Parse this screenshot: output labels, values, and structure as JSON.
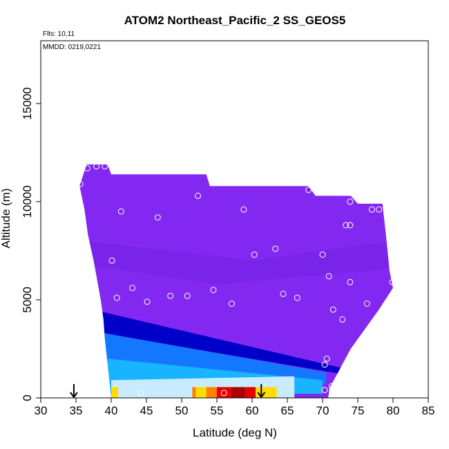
{
  "chart_data": {
    "type": "heatmap",
    "title": "ATOM2 Northeast_Pacific_2 SS_GEOS5",
    "flights_label": "Flts: 10,11",
    "dates_label": "MMDD: 0219,0221",
    "xlabel": "Latitude (deg N)",
    "ylabel": "Altitude (m)",
    "xlim": [
      30,
      85
    ],
    "ylim": [
      0,
      18200
    ],
    "x_ticks": [
      30,
      35,
      40,
      45,
      50,
      55,
      60,
      65,
      70,
      75,
      80,
      85
    ],
    "y_ticks": [
      0,
      5000,
      10000,
      15000
    ],
    "grid": false,
    "legend": "none",
    "colors": {
      "background": "#8228f0",
      "deep_blue": "#0000c8",
      "mid_blue": "#1478ff",
      "cyan": "#19b4ff",
      "light_blue": "#c8ebff",
      "yellow": "#ffdc00",
      "orange": "#ff8200",
      "red": "#e60000",
      "dark_red": "#aa0000"
    },
    "field_top_altitude": [
      {
        "lat": 35.5,
        "alt": 10800
      },
      {
        "lat": 36.5,
        "alt": 11900
      },
      {
        "lat": 39.5,
        "alt": 11900
      },
      {
        "lat": 40.0,
        "alt": 11400
      },
      {
        "lat": 53.5,
        "alt": 11400
      },
      {
        "lat": 54.0,
        "alt": 10800
      },
      {
        "lat": 68.0,
        "alt": 10800
      },
      {
        "lat": 69.0,
        "alt": 10300
      },
      {
        "lat": 74.0,
        "alt": 10300
      },
      {
        "lat": 75.0,
        "alt": 9900
      },
      {
        "lat": 78.5,
        "alt": 9900
      },
      {
        "lat": 79.0,
        "alt": 8300
      },
      {
        "lat": 79.5,
        "alt": 6500
      },
      {
        "lat": 80.0,
        "alt": 5600
      }
    ],
    "field_left_edge": [
      {
        "alt": 10800,
        "lat": 35.5
      },
      {
        "alt": 9600,
        "lat": 36.2
      },
      {
        "alt": 8300,
        "lat": 36.7
      },
      {
        "alt": 7000,
        "lat": 37.5
      },
      {
        "alt": 6000,
        "lat": 38.0
      },
      {
        "alt": 5000,
        "lat": 38.5
      },
      {
        "alt": 4000,
        "lat": 38.9
      },
      {
        "alt": 3000,
        "lat": 39.1
      },
      {
        "alt": 2000,
        "lat": 39.4
      },
      {
        "alt": 1000,
        "lat": 39.7
      },
      {
        "alt": 0,
        "lat": 40.0
      }
    ],
    "field_right_edge": [
      {
        "alt": 5600,
        "lat": 80.0
      },
      {
        "alt": 4500,
        "lat": 78.0
      },
      {
        "alt": 3500,
        "lat": 76.0
      },
      {
        "alt": 2500,
        "lat": 74.0
      },
      {
        "alt": 1500,
        "lat": 72.5
      },
      {
        "alt": 500,
        "lat": 71.0
      },
      {
        "alt": 0,
        "lat": 70.8
      }
    ],
    "concentration_bands": [
      {
        "level": "deep_blue",
        "lat_start": 38.5,
        "lat_end": 73.0,
        "alt_top_start": 4400,
        "alt_top_end": 1500,
        "alt_bot_start": 3300,
        "alt_bot_end": 1200
      },
      {
        "level": "mid_blue",
        "lat_start": 39.0,
        "lat_end": 70.5,
        "alt_top_start": 3300,
        "alt_top_end": 1300,
        "alt_bot_start": 2000,
        "alt_bot_end": 700
      },
      {
        "level": "cyan",
        "lat_start": 39.5,
        "lat_end": 70.0,
        "alt_top_start": 2000,
        "alt_top_end": 900,
        "alt_bot_start": 300,
        "alt_bot_end": 200
      },
      {
        "level": "light_blue",
        "lat_start": 40.0,
        "lat_end": 66.0,
        "alt_top_start": 900,
        "alt_top_end": 1100,
        "alt_bot_start": 0,
        "alt_bot_end": 0
      }
    ],
    "surface_hotspot": [
      {
        "lat": 40.0,
        "level": "yellow"
      },
      {
        "lat": 41.0,
        "level": "light_blue"
      },
      {
        "lat": 51.5,
        "level": "orange"
      },
      {
        "lat": 52.0,
        "level": "yellow"
      },
      {
        "lat": 53.5,
        "level": "orange"
      },
      {
        "lat": 55.0,
        "level": "red"
      },
      {
        "lat": 57.0,
        "level": "dark_red"
      },
      {
        "lat": 59.0,
        "level": "red"
      },
      {
        "lat": 60.5,
        "level": "yellow"
      },
      {
        "lat": 62.0,
        "level": "yellow"
      },
      {
        "lat": 63.5,
        "level": "light_blue"
      }
    ],
    "sample_points": [
      {
        "lat": 35.6,
        "alt": 10900
      },
      {
        "lat": 36.6,
        "alt": 11700
      },
      {
        "lat": 37.9,
        "alt": 11800
      },
      {
        "lat": 39.1,
        "alt": 11800
      },
      {
        "lat": 41.4,
        "alt": 9500
      },
      {
        "lat": 46.6,
        "alt": 9200
      },
      {
        "lat": 52.3,
        "alt": 10300
      },
      {
        "lat": 58.8,
        "alt": 9600
      },
      {
        "lat": 68.0,
        "alt": 10600
      },
      {
        "lat": 73.9,
        "alt": 10000
      },
      {
        "lat": 77.0,
        "alt": 9600
      },
      {
        "lat": 78.0,
        "alt": 9600
      },
      {
        "lat": 73.3,
        "alt": 8800
      },
      {
        "lat": 73.9,
        "alt": 8800
      },
      {
        "lat": 63.3,
        "alt": 7600
      },
      {
        "lat": 60.3,
        "alt": 7300
      },
      {
        "lat": 70.0,
        "alt": 7300
      },
      {
        "lat": 40.1,
        "alt": 7000
      },
      {
        "lat": 70.9,
        "alt": 6200
      },
      {
        "lat": 73.9,
        "alt": 5900
      },
      {
        "lat": 79.9,
        "alt": 5900
      },
      {
        "lat": 43.0,
        "alt": 5600
      },
      {
        "lat": 54.5,
        "alt": 5500
      },
      {
        "lat": 64.4,
        "alt": 5300
      },
      {
        "lat": 66.4,
        "alt": 5100
      },
      {
        "lat": 48.4,
        "alt": 5200
      },
      {
        "lat": 50.8,
        "alt": 5200
      },
      {
        "lat": 40.8,
        "alt": 5100
      },
      {
        "lat": 45.1,
        "alt": 4900
      },
      {
        "lat": 57.1,
        "alt": 4800
      },
      {
        "lat": 76.3,
        "alt": 4800
      },
      {
        "lat": 71.5,
        "alt": 4500
      },
      {
        "lat": 72.8,
        "alt": 4000
      },
      {
        "lat": 70.6,
        "alt": 2000
      },
      {
        "lat": 70.3,
        "alt": 1700
      },
      {
        "lat": 71.3,
        "alt": 600
      },
      {
        "lat": 70.3,
        "alt": 400
      },
      {
        "lat": 44.2,
        "alt": 250
      },
      {
        "lat": 56.0,
        "alt": 250
      }
    ],
    "markers": [
      {
        "type": "arrow",
        "lat": 34.7
      },
      {
        "type": "arrow",
        "lat": 61.3
      }
    ]
  }
}
